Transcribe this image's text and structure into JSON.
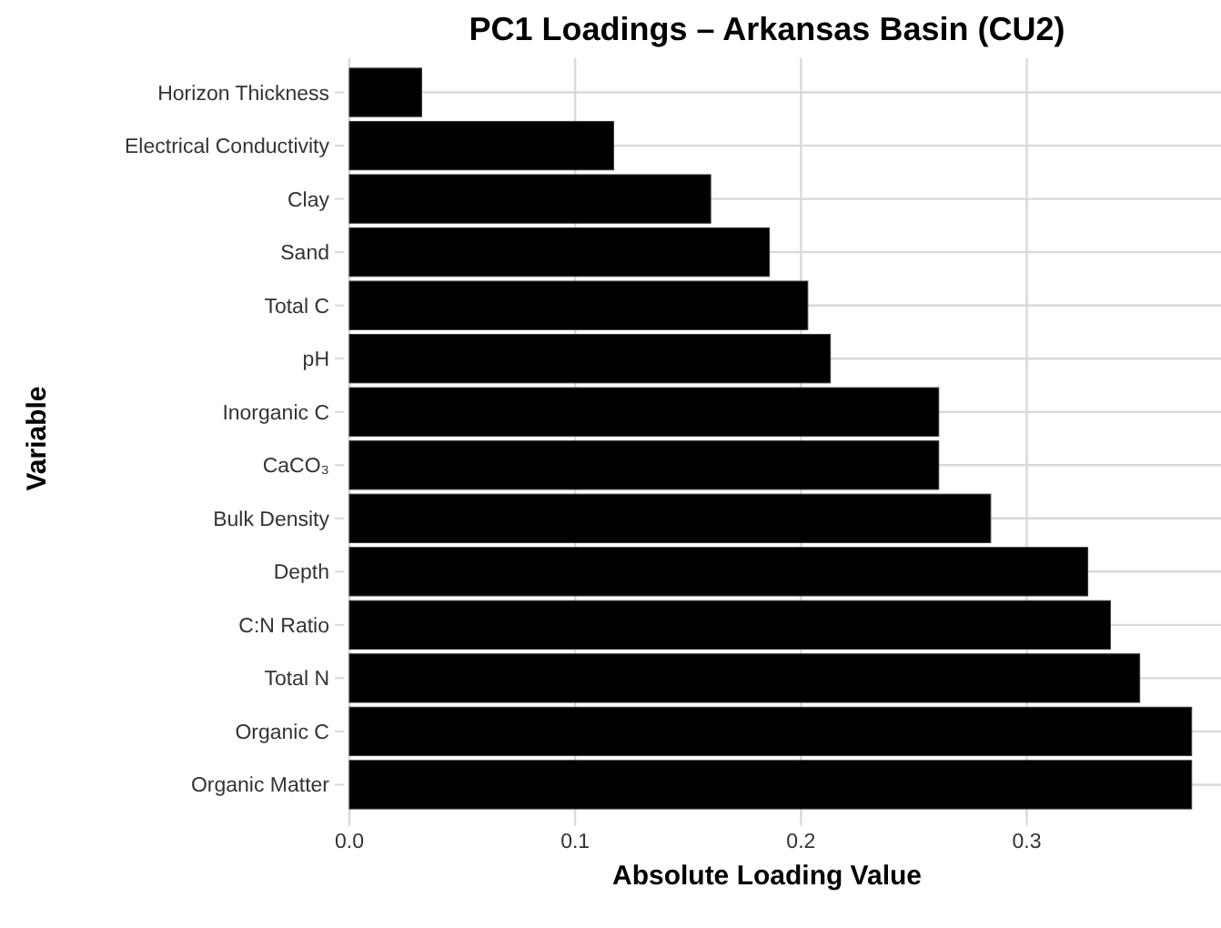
{
  "chart_data": {
    "type": "bar",
    "orientation": "horizontal",
    "title": "PC1 Loadings – Arkansas Basin (CU2)",
    "xlabel": "Absolute Loading Value",
    "ylabel": "Variable",
    "categories": [
      "Horizon Thickness",
      "Electrical Conductivity",
      "Clay",
      "Sand",
      "Total C",
      "pH",
      "Inorganic C",
      "CaCO₃",
      "Bulk Density",
      "Depth",
      "C:N Ratio",
      "Total N",
      "Organic C",
      "Organic Matter"
    ],
    "values": [
      0.032,
      0.117,
      0.16,
      0.186,
      0.203,
      0.213,
      0.261,
      0.261,
      0.284,
      0.327,
      0.337,
      0.35,
      0.373,
      0.373
    ],
    "color": "#000000",
    "xlim": [
      0,
      0.386
    ],
    "xticks": [
      {
        "value": 0,
        "label": "0.0"
      },
      0.1,
      0.2,
      0.3
    ],
    "grid": true
  }
}
